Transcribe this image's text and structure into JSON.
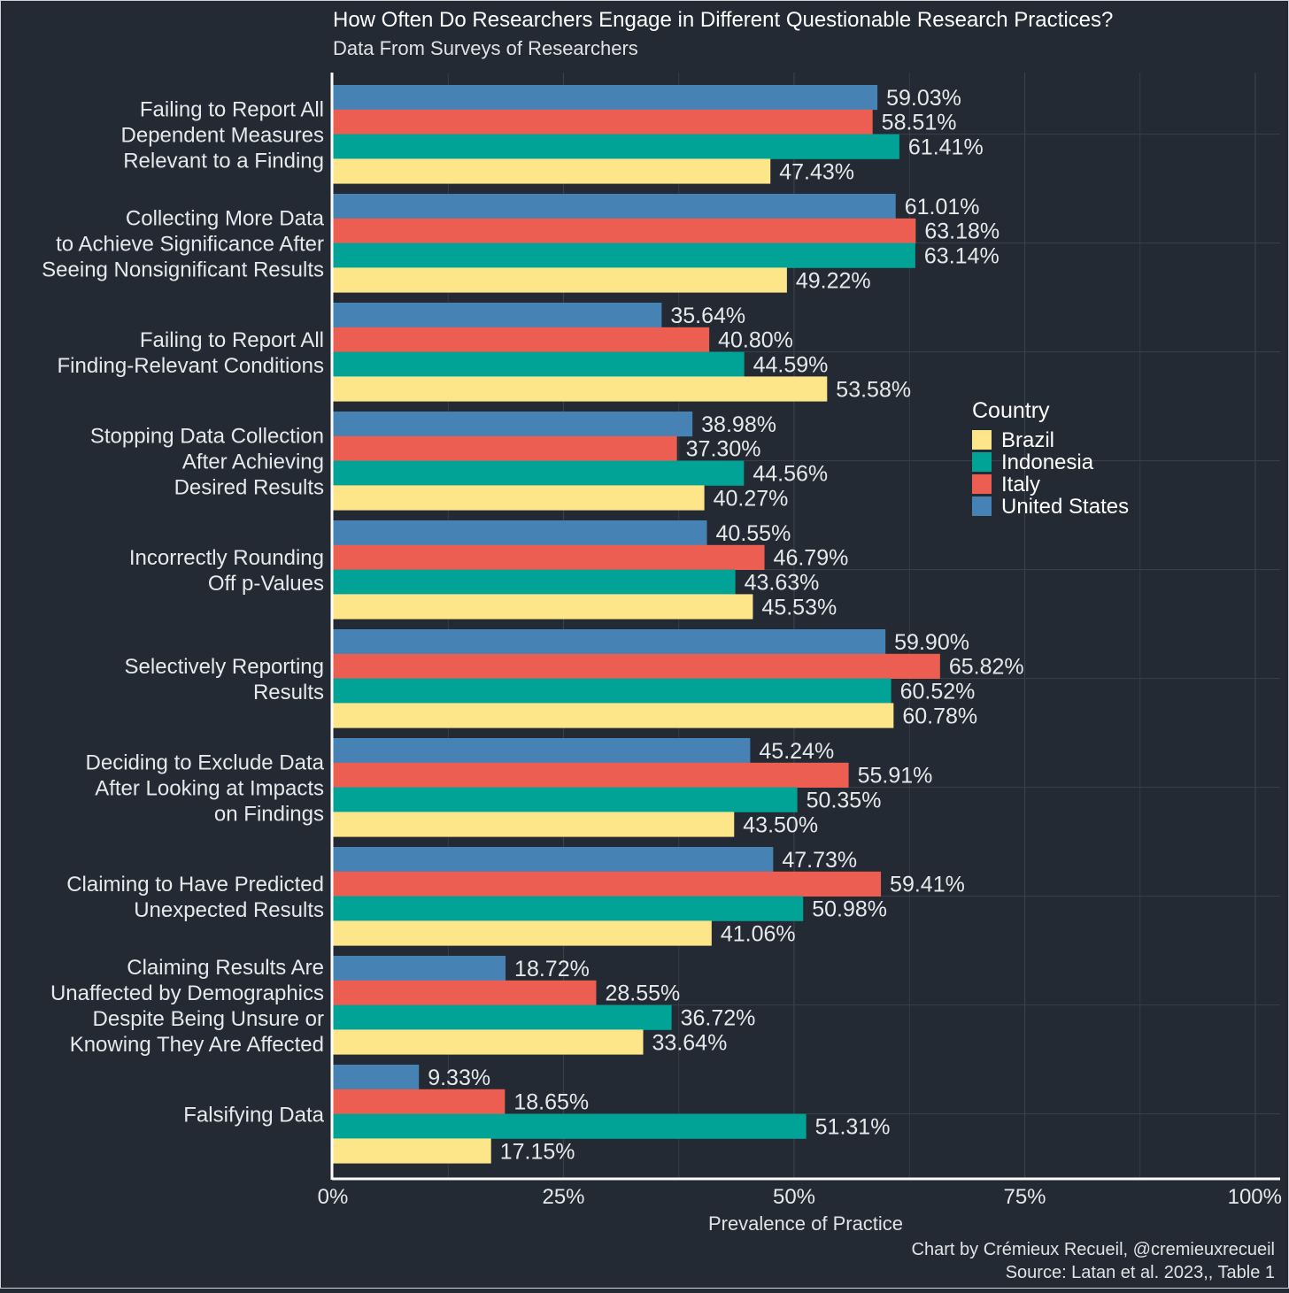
{
  "chart_data": {
    "type": "bar",
    "orientation": "horizontal",
    "title": "How Often Do Researchers Engage in Different Questionable Research Practices?",
    "subtitle": "Data From Surveys of Researchers",
    "xlabel": "Prevalence of Practice",
    "ylabel": "",
    "xlim": [
      0,
      100
    ],
    "x_ticks": [
      "0%",
      "25%",
      "50%",
      "75%",
      "100%"
    ],
    "grid": true,
    "legend": {
      "title": "Country",
      "placement": "right"
    },
    "caption": [
      "Chart by Crémieux Recueil, @cremieuxrecueil",
      "Source: Latan et al. 2023,, Table 1"
    ],
    "categories": [
      [
        "Failing to Report All",
        "Dependent Measures",
        "Relevant to a Finding"
      ],
      [
        "Collecting More Data",
        "to Achieve Significance After",
        "Seeing Nonsignificant Results"
      ],
      [
        "Failing to Report All",
        "Finding-Relevant Conditions"
      ],
      [
        "Stopping Data Collection",
        "After Achieving",
        "Desired Results"
      ],
      [
        "Incorrectly Rounding",
        "Off p-Values"
      ],
      [
        "Selectively Reporting",
        "Results"
      ],
      [
        "Deciding to Exclude Data",
        "After Looking at Impacts",
        "on Findings"
      ],
      [
        "Claiming to Have Predicted",
        "Unexpected Results"
      ],
      [
        "Claiming Results Are",
        "Unaffected by Demographics",
        "Despite Being Unsure or",
        "Knowing They Are Affected"
      ],
      [
        "Falsifying Data"
      ]
    ],
    "series": [
      {
        "name": "United States",
        "color": "#4682b4",
        "values": [
          59.03,
          61.01,
          35.64,
          38.98,
          40.55,
          59.9,
          45.24,
          47.73,
          18.72,
          9.33
        ],
        "labels": [
          "59.03%",
          "61.01%",
          "35.64%",
          "38.98%",
          "40.55%",
          "59.90%",
          "45.24%",
          "47.73%",
          "18.72%",
          "9.33%"
        ]
      },
      {
        "name": "Italy",
        "color": "#ed5e52",
        "values": [
          58.51,
          63.18,
          40.8,
          37.3,
          46.79,
          65.82,
          55.91,
          59.41,
          28.55,
          18.65
        ],
        "labels": [
          "58.51%",
          "63.18%",
          "40.80%",
          "37.30%",
          "46.79%",
          "65.82%",
          "55.91%",
          "59.41%",
          "28.55%",
          "18.65%"
        ]
      },
      {
        "name": "Indonesia",
        "color": "#00a396",
        "values": [
          61.41,
          63.14,
          44.59,
          44.56,
          43.63,
          60.52,
          50.35,
          50.98,
          36.72,
          51.31
        ],
        "labels": [
          "61.41%",
          "63.14%",
          "44.59%",
          "44.56%",
          "43.63%",
          "60.52%",
          "50.35%",
          "50.98%",
          "36.72%",
          "51.31%"
        ]
      },
      {
        "name": "Brazil",
        "color": "#fde68a",
        "values": [
          47.43,
          49.22,
          53.58,
          40.27,
          45.53,
          60.78,
          43.5,
          41.06,
          33.64,
          17.15
        ],
        "labels": [
          "47.43%",
          "49.22%",
          "53.58%",
          "40.27%",
          "45.53%",
          "60.78%",
          "43.50%",
          "41.06%",
          "33.64%",
          "17.15%"
        ]
      }
    ],
    "legend_order": [
      "Brazil",
      "Indonesia",
      "Italy",
      "United States"
    ]
  }
}
